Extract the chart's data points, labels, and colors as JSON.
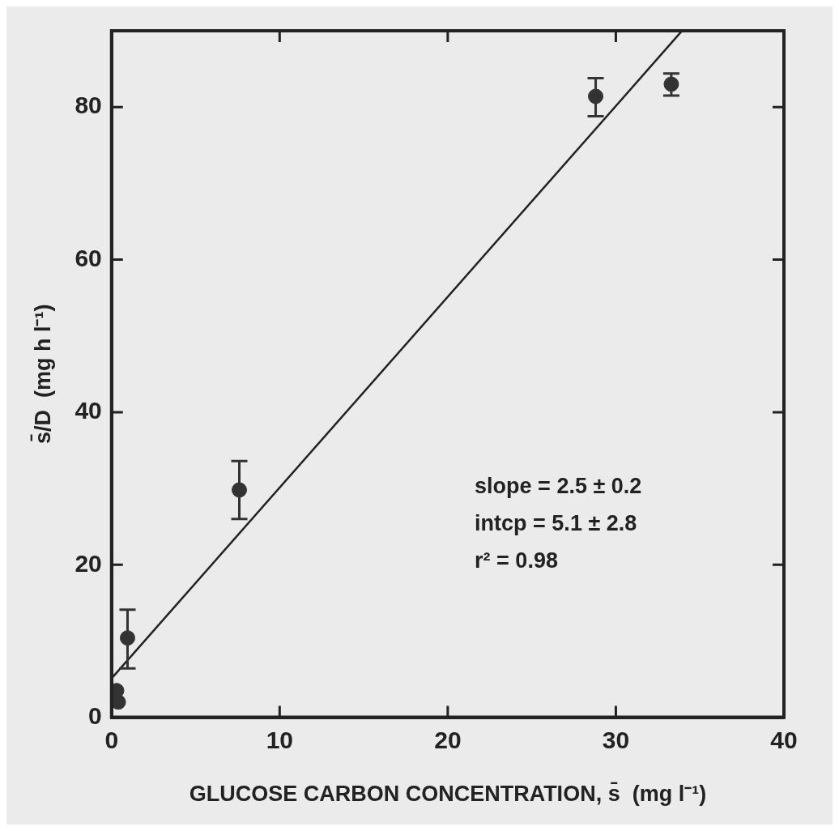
{
  "chart_data": {
    "type": "scatter",
    "xlabel": "GLUCOSE CARBON CONCENTRATION, s̄  (mg l⁻¹)",
    "ylabel": "s̄/D  (mg h l⁻¹)",
    "xlim": [
      0,
      40
    ],
    "xticks": [
      0,
      10,
      20,
      30,
      40
    ],
    "ylim": [
      0,
      90
    ],
    "yticks": [
      0,
      20,
      40,
      60,
      80
    ],
    "grid": false,
    "legend": false,
    "annotations": [
      "slope = 2.5 ± 0.2",
      "intcp = 5.1 ± 2.8",
      "r² = 0.98"
    ],
    "series": [
      {
        "type": "scatter",
        "marker": "circle",
        "color": "#333333",
        "x": [
          0.3,
          0.4,
          0.95,
          7.6,
          28.8,
          33.3
        ],
        "values": [
          3.5,
          2.0,
          10.4,
          29.8,
          81.4,
          83.0
        ],
        "errors": [
          null,
          null,
          [
            6.4,
            14.1
          ],
          [
            26.0,
            33.6
          ],
          [
            78.8,
            83.8
          ],
          [
            81.5,
            84.4
          ]
        ]
      },
      {
        "type": "line",
        "marker": "none",
        "color": "#222222",
        "x": [
          0,
          33.9
        ],
        "values": [
          5.1,
          89.9
        ]
      }
    ]
  }
}
